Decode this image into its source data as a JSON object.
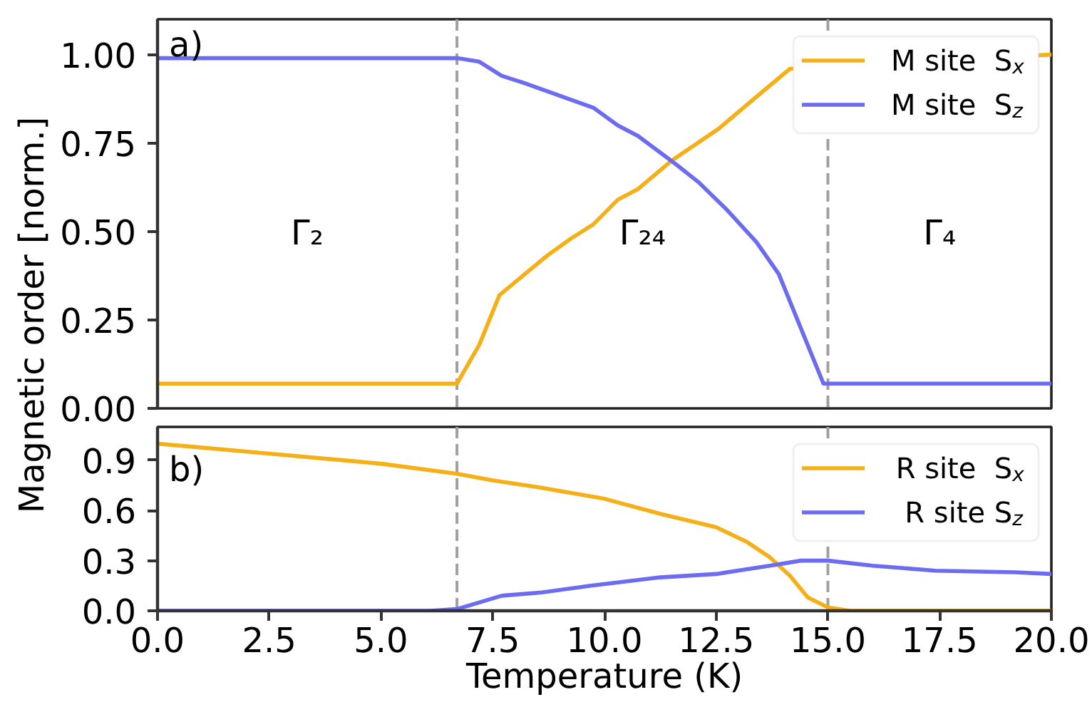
{
  "chart_data": [
    {
      "type": "line",
      "ylabel": "Magnetic order [norm.]",
      "xlim": [
        0,
        20
      ],
      "ylim": [
        0,
        1.1
      ],
      "yticks": [
        {
          "value": 0,
          "label": "0.00"
        },
        {
          "value": 0.25,
          "label": "0.25"
        },
        {
          "value": 0.5,
          "label": "0.50"
        },
        {
          "value": 0.75,
          "label": "0.75"
        },
        {
          "value": 1.0,
          "label": "1.00"
        }
      ],
      "tick_labels": "y",
      "legend": "top right",
      "annotations": [
        "a)",
        "Γ₂",
        "Γ₂₄",
        "Γ₄"
      ],
      "ref_lines": [
        {
          "axis": "x",
          "value": 6.7,
          "color": "#a0a0a0",
          "line_style": "dashed"
        },
        {
          "axis": "x",
          "value": 15,
          "color": "#a0a0a0",
          "line_style": "dashed"
        }
      ],
      "series": [
        {
          "name": "M site  S$_{x}$",
          "color": "#f5b017",
          "x": [
            0,
            6.7,
            7.2,
            7.65,
            8.7,
            9.25,
            9.75,
            10.3,
            10.75,
            11.5,
            12.55,
            13.3,
            14.15,
            20
          ],
          "values": [
            0.07,
            0.07,
            0.18,
            0.32,
            0.43,
            0.48,
            0.52,
            0.59,
            0.62,
            0.7,
            0.79,
            0.87,
            0.96,
            1.0
          ]
        },
        {
          "name": "M site  S$_{z}$",
          "color": "#6c6cf0",
          "x": [
            0,
            6.7,
            7.2,
            7.7,
            8.2,
            9.75,
            10.3,
            10.75,
            11.6,
            12.1,
            12.75,
            13.4,
            13.9,
            14.9,
            20
          ],
          "values": [
            0.99,
            0.99,
            0.98,
            0.94,
            0.92,
            0.85,
            0.8,
            0.77,
            0.69,
            0.64,
            0.56,
            0.47,
            0.38,
            0.07,
            0.07
          ]
        }
      ]
    },
    {
      "type": "line",
      "xlabel": "Temperature (K)",
      "xlim": [
        0,
        20
      ],
      "ylim": [
        0,
        1.1
      ],
      "xticks": [
        {
          "value": 0,
          "label": "0.0"
        },
        {
          "value": 2.5,
          "label": "2.5"
        },
        {
          "value": 5,
          "label": "5.0"
        },
        {
          "value": 7.5,
          "label": "7.5"
        },
        {
          "value": 10,
          "label": "10.0"
        },
        {
          "value": 12.5,
          "label": "12.5"
        },
        {
          "value": 15,
          "label": "15.0"
        },
        {
          "value": 17.5,
          "label": "17.5"
        },
        {
          "value": 20,
          "label": "20.0"
        }
      ],
      "yticks": [
        {
          "value": 0,
          "label": "0.0"
        },
        {
          "value": 0.3,
          "label": "0.3"
        },
        {
          "value": 0.6,
          "label": "0.6"
        },
        {
          "value": 0.9,
          "label": "0.9"
        }
      ],
      "legend": "top right",
      "annotations": [
        "b)"
      ],
      "ref_lines": [
        {
          "axis": "x",
          "value": 6.7,
          "color": "#a0a0a0",
          "line_style": "dashed"
        },
        {
          "axis": "x",
          "value": 15,
          "color": "#a0a0a0",
          "line_style": "dashed"
        }
      ],
      "series": [
        {
          "name": "R site  S$_{x}$",
          "color": "#f5b017",
          "x": [
            0,
            2.5,
            5,
            6.7,
            7.5,
            8.5,
            10,
            11.25,
            12.5,
            13.2,
            13.7,
            14.15,
            14.55,
            15,
            15.5,
            20
          ],
          "values": [
            1.0,
            0.94,
            0.88,
            0.82,
            0.78,
            0.74,
            0.67,
            0.58,
            0.5,
            0.41,
            0.32,
            0.21,
            0.08,
            0.02,
            0.0,
            0.0
          ]
        },
        {
          "name": "R site S$_{z}$",
          "color": "#6c6cf0",
          "x": [
            0,
            6.1,
            6.7,
            7.7,
            8.6,
            9.7,
            11.25,
            12.5,
            13.7,
            14.4,
            15,
            16,
            17.4,
            19.2,
            20
          ],
          "values": [
            0,
            0,
            0.01,
            0.09,
            0.11,
            0.15,
            0.2,
            0.22,
            0.27,
            0.3,
            0.3,
            0.27,
            0.24,
            0.23,
            0.22
          ]
        }
      ]
    }
  ]
}
